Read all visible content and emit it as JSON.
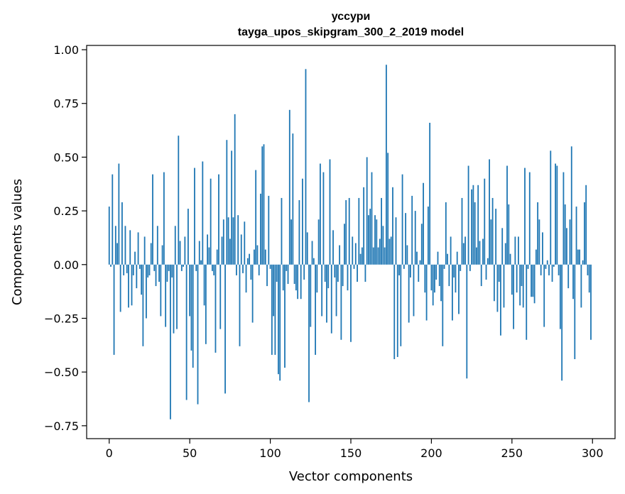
{
  "chart_data": {
    "type": "bar",
    "title": "уссури",
    "subtitle": "tayga_upos_skipgram_300_2_2019 model",
    "xlabel": "Vector components",
    "ylabel": "Components values",
    "xlim": [
      -14,
      314
    ],
    "ylim": [
      -0.81,
      1.02
    ],
    "xticks": [
      0,
      50,
      100,
      150,
      200,
      250,
      300
    ],
    "xtick_labels": [
      "0",
      "50",
      "100",
      "150",
      "200",
      "250",
      "300"
    ],
    "yticks": [
      -0.75,
      -0.5,
      -0.25,
      0.0,
      0.25,
      0.5,
      0.75,
      1.0
    ],
    "ytick_labels": [
      "−0.75",
      "−0.50",
      "−0.25",
      "0.00",
      "0.25",
      "0.50",
      "0.75",
      "1.00"
    ],
    "grid": false,
    "bar_color": "#1f77b4",
    "x": "0..299",
    "values": [
      0.27,
      -0.01,
      0.42,
      -0.42,
      0.18,
      0.1,
      0.47,
      -0.22,
      0.29,
      -0.05,
      0.18,
      -0.04,
      -0.2,
      0.16,
      -0.19,
      -0.05,
      0.06,
      -0.11,
      0.15,
      -0.02,
      -0.14,
      -0.38,
      0.13,
      -0.25,
      -0.06,
      -0.05,
      0.1,
      0.42,
      -0.03,
      -0.1,
      0.18,
      -0.08,
      -0.24,
      0.09,
      0.43,
      -0.29,
      -0.08,
      -0.03,
      -0.72,
      -0.06,
      -0.32,
      0.18,
      -0.3,
      0.6,
      0.11,
      -0.03,
      -0.01,
      0.13,
      -0.63,
      0.26,
      -0.24,
      -0.4,
      -0.48,
      0.45,
      -0.03,
      -0.65,
      0.11,
      0.02,
      0.48,
      -0.19,
      -0.37,
      0.14,
      0.08,
      0.4,
      -0.03,
      -0.05,
      -0.41,
      0.07,
      0.42,
      -0.3,
      0.13,
      0.21,
      -0.6,
      0.58,
      0.22,
      0.12,
      0.53,
      0.22,
      0.7,
      -0.05,
      0.23,
      -0.38,
      0.14,
      -0.04,
      0.2,
      -0.13,
      0.03,
      0.05,
      -0.07,
      -0.27,
      0.07,
      0.44,
      0.09,
      -0.05,
      0.33,
      0.55,
      0.56,
      0.07,
      -0.1,
      0.32,
      -0.02,
      -0.42,
      -0.24,
      -0.42,
      -0.08,
      -0.51,
      -0.54,
      0.31,
      -0.12,
      -0.48,
      -0.03,
      -0.09,
      0.72,
      0.21,
      0.61,
      -0.09,
      -0.12,
      -0.16,
      0.3,
      -0.16,
      0.4,
      -0.07,
      0.91,
      0.15,
      -0.64,
      -0.29,
      0.11,
      0.03,
      -0.42,
      -0.13,
      0.21,
      0.47,
      -0.24,
      0.43,
      -0.08,
      -0.27,
      -0.11,
      0.49,
      -0.32,
      0.16,
      -0.06,
      -0.24,
      -0.08,
      0.09,
      -0.35,
      -0.1,
      0.19,
      0.3,
      -0.12,
      0.31,
      -0.36,
      0.13,
      -0.02,
      0.1,
      -0.08,
      0.31,
      0.05,
      0.08,
      0.36,
      -0.08,
      0.5,
      0.23,
      0.26,
      0.43,
      0.08,
      0.23,
      0.21,
      0.08,
      0.12,
      0.31,
      0.18,
      0.08,
      0.93,
      0.52,
      0.12,
      0.13,
      0.36,
      -0.44,
      0.22,
      -0.43,
      -0.05,
      -0.38,
      0.42,
      -0.02,
      0.24,
      0.09,
      -0.27,
      -0.06,
      0.32,
      -0.24,
      0.25,
      0.06,
      -0.08,
      0.02,
      0.19,
      0.38,
      -0.13,
      -0.26,
      0.27,
      0.66,
      -0.12,
      -0.19,
      -0.13,
      -0.07,
      0.06,
      -0.1,
      -0.17,
      -0.38,
      -0.02,
      0.29,
      0.05,
      -0.1,
      0.13,
      -0.26,
      -0.06,
      -0.13,
      0.06,
      -0.23,
      -0.03,
      0.31,
      0.1,
      0.13,
      -0.53,
      0.46,
      -0.03,
      0.35,
      0.37,
      0.29,
      0.08,
      0.37,
      0.11,
      -0.1,
      0.12,
      0.4,
      -0.07,
      0.03,
      0.49,
      0.21,
      0.31,
      -0.17,
      0.26,
      -0.22,
      -0.08,
      -0.33,
      0.17,
      -0.2,
      0.1,
      0.46,
      0.28,
      0.05,
      -0.14,
      -0.3,
      0.13,
      -0.13,
      0.13,
      -0.19,
      -0.1,
      -0.2,
      0.45,
      -0.35,
      -0.02,
      0.43,
      -0.15,
      -0.15,
      -0.18,
      0.07,
      0.29,
      0.21,
      -0.05,
      0.15,
      -0.29,
      -0.02,
      0.02,
      -0.05,
      0.53,
      -0.08,
      -0.01,
      0.47,
      0.46,
      -0.05,
      -0.3,
      -0.54,
      0.43,
      0.28,
      0.17,
      -0.11,
      0.21,
      0.55,
      -0.16,
      -0.44,
      0.27,
      0.07,
      0.07,
      -0.2,
      0.02,
      0.29,
      0.37,
      -0.05,
      -0.13,
      -0.35
    ]
  }
}
